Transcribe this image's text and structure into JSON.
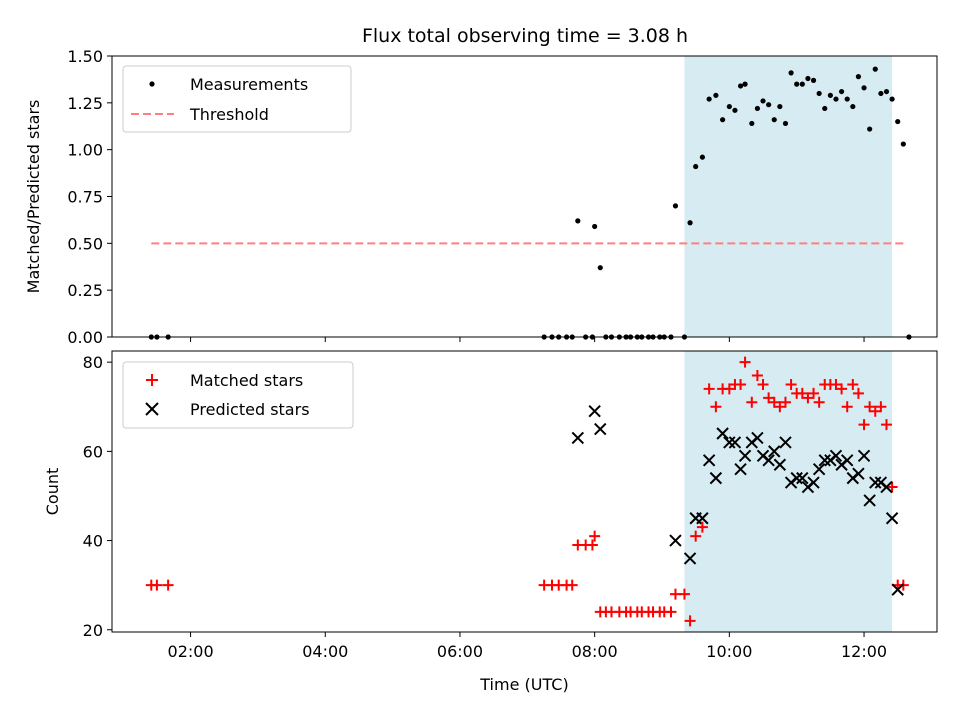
{
  "chart_data": [
    {
      "type": "scatter",
      "title": "Flux total observing time = 3.08 h",
      "ylabel": "Matched/Predicted stars",
      "xlim": [
        "00:50",
        "13:05"
      ],
      "ylim": [
        0,
        1.5
      ],
      "yticks": [
        "0.00",
        "0.25",
        "0.50",
        "0.75",
        "1.00",
        "1.25",
        "1.50"
      ],
      "legend_position": "top-left",
      "highlight_span": [
        "09:20",
        "12:25"
      ],
      "highlight_color": "#add8e6",
      "series": [
        {
          "name": "Measurements",
          "color": "#000000",
          "marker": "dot",
          "points": [
            [
              "01:25",
              0
            ],
            [
              "01:30",
              0
            ],
            [
              "01:40",
              0
            ],
            [
              "07:15",
              0
            ],
            [
              "07:22",
              0
            ],
            [
              "07:28",
              0
            ],
            [
              "07:35",
              0
            ],
            [
              "07:40",
              0
            ],
            [
              "07:45",
              0.62
            ],
            [
              "07:52",
              0
            ],
            [
              "07:58",
              0
            ],
            [
              "08:00",
              0.59
            ],
            [
              "08:05",
              0.37
            ],
            [
              "08:10",
              0
            ],
            [
              "08:15",
              0
            ],
            [
              "08:22",
              0
            ],
            [
              "08:28",
              0
            ],
            [
              "08:32",
              0
            ],
            [
              "08:38",
              0
            ],
            [
              "08:42",
              0
            ],
            [
              "08:48",
              0
            ],
            [
              "08:52",
              0
            ],
            [
              "08:58",
              0
            ],
            [
              "09:02",
              0
            ],
            [
              "09:08",
              0
            ],
            [
              "09:12",
              0.7
            ],
            [
              "09:20",
              0
            ],
            [
              "09:25",
              0.61
            ],
            [
              "09:30",
              0.91
            ],
            [
              "09:36",
              0.96
            ],
            [
              "09:42",
              1.27
            ],
            [
              "09:48",
              1.29
            ],
            [
              "09:54",
              1.16
            ],
            [
              "10:00",
              1.23
            ],
            [
              "10:05",
              1.21
            ],
            [
              "10:10",
              1.34
            ],
            [
              "10:14",
              1.35
            ],
            [
              "10:20",
              1.14
            ],
            [
              "10:25",
              1.22
            ],
            [
              "10:30",
              1.26
            ],
            [
              "10:35",
              1.24
            ],
            [
              "10:40",
              1.16
            ],
            [
              "10:45",
              1.23
            ],
            [
              "10:50",
              1.14
            ],
            [
              "10:55",
              1.41
            ],
            [
              "11:00",
              1.35
            ],
            [
              "11:05",
              1.35
            ],
            [
              "11:10",
              1.38
            ],
            [
              "11:15",
              1.37
            ],
            [
              "11:20",
              1.3
            ],
            [
              "11:25",
              1.22
            ],
            [
              "11:30",
              1.29
            ],
            [
              "11:35",
              1.27
            ],
            [
              "11:40",
              1.31
            ],
            [
              "11:45",
              1.27
            ],
            [
              "11:50",
              1.23
            ],
            [
              "11:55",
              1.39
            ],
            [
              "12:00",
              1.33
            ],
            [
              "12:05",
              1.11
            ],
            [
              "12:10",
              1.43
            ],
            [
              "12:15",
              1.3
            ],
            [
              "12:20",
              1.31
            ],
            [
              "12:25",
              1.27
            ],
            [
              "12:30",
              1.15
            ],
            [
              "12:35",
              1.03
            ],
            [
              "12:40",
              0
            ]
          ]
        },
        {
          "name": "Threshold",
          "color": "#ff7f7f",
          "line": "dashed",
          "points": [
            [
              "01:25",
              0.5
            ],
            [
              "12:35",
              0.5
            ]
          ]
        }
      ]
    },
    {
      "type": "scatter",
      "ylabel": "Count",
      "xlabel": "Time (UTC)",
      "xlim": [
        "00:50",
        "13:05"
      ],
      "ylim": [
        19.5,
        82.5
      ],
      "xticks": [
        "02:00",
        "04:00",
        "06:00",
        "08:00",
        "10:00",
        "12:00"
      ],
      "yticks": [
        "20",
        "40",
        "60",
        "80"
      ],
      "legend_position": "top-left",
      "highlight_span": [
        "09:20",
        "12:25"
      ],
      "highlight_color": "#add8e6",
      "series": [
        {
          "name": "Matched stars",
          "color": "#ff0000",
          "marker": "plus",
          "points": [
            [
              "01:25",
              30
            ],
            [
              "01:30",
              30
            ],
            [
              "01:40",
              30
            ],
            [
              "07:15",
              30
            ],
            [
              "07:22",
              30
            ],
            [
              "07:28",
              30
            ],
            [
              "07:35",
              30
            ],
            [
              "07:40",
              30
            ],
            [
              "07:45",
              39
            ],
            [
              "07:52",
              39
            ],
            [
              "07:58",
              39
            ],
            [
              "08:00",
              41
            ],
            [
              "08:05",
              24
            ],
            [
              "08:10",
              24
            ],
            [
              "08:15",
              24
            ],
            [
              "08:22",
              24
            ],
            [
              "08:28",
              24
            ],
            [
              "08:32",
              24
            ],
            [
              "08:38",
              24
            ],
            [
              "08:42",
              24
            ],
            [
              "08:48",
              24
            ],
            [
              "08:52",
              24
            ],
            [
              "08:58",
              24
            ],
            [
              "09:02",
              24
            ],
            [
              "09:08",
              24
            ],
            [
              "09:12",
              28
            ],
            [
              "09:20",
              28
            ],
            [
              "09:25",
              22
            ],
            [
              "09:30",
              41
            ],
            [
              "09:36",
              43
            ],
            [
              "09:42",
              74
            ],
            [
              "09:48",
              70
            ],
            [
              "09:54",
              74
            ],
            [
              "10:00",
              74
            ],
            [
              "10:05",
              75
            ],
            [
              "10:10",
              75
            ],
            [
              "10:14",
              80
            ],
            [
              "10:20",
              71
            ],
            [
              "10:25",
              77
            ],
            [
              "10:30",
              75
            ],
            [
              "10:35",
              72
            ],
            [
              "10:40",
              71
            ],
            [
              "10:45",
              70
            ],
            [
              "10:50",
              71
            ],
            [
              "10:55",
              75
            ],
            [
              "11:00",
              73
            ],
            [
              "11:05",
              73
            ],
            [
              "11:10",
              72
            ],
            [
              "11:15",
              73
            ],
            [
              "11:20",
              71
            ],
            [
              "11:25",
              75
            ],
            [
              "11:30",
              75
            ],
            [
              "11:35",
              75
            ],
            [
              "11:40",
              74
            ],
            [
              "11:45",
              70
            ],
            [
              "11:50",
              75
            ],
            [
              "11:55",
              73
            ],
            [
              "12:00",
              66
            ],
            [
              "12:05",
              70
            ],
            [
              "12:10",
              69
            ],
            [
              "12:15",
              70
            ],
            [
              "12:20",
              66
            ],
            [
              "12:25",
              52
            ],
            [
              "12:30",
              30
            ],
            [
              "12:35",
              30
            ]
          ]
        },
        {
          "name": "Predicted stars",
          "color": "#000000",
          "marker": "cross",
          "points": [
            [
              "07:45",
              63
            ],
            [
              "08:00",
              69
            ],
            [
              "08:05",
              65
            ],
            [
              "09:12",
              40
            ],
            [
              "09:25",
              36
            ],
            [
              "09:30",
              45
            ],
            [
              "09:36",
              45
            ],
            [
              "09:42",
              58
            ],
            [
              "09:48",
              54
            ],
            [
              "09:54",
              64
            ],
            [
              "10:00",
              62
            ],
            [
              "10:05",
              62
            ],
            [
              "10:10",
              56
            ],
            [
              "10:14",
              59
            ],
            [
              "10:20",
              62
            ],
            [
              "10:25",
              63
            ],
            [
              "10:30",
              59
            ],
            [
              "10:35",
              58
            ],
            [
              "10:40",
              60
            ],
            [
              "10:45",
              57
            ],
            [
              "10:50",
              62
            ],
            [
              "10:55",
              53
            ],
            [
              "11:00",
              54
            ],
            [
              "11:05",
              54
            ],
            [
              "11:10",
              52
            ],
            [
              "11:15",
              53
            ],
            [
              "11:20",
              56
            ],
            [
              "11:25",
              58
            ],
            [
              "11:30",
              58
            ],
            [
              "11:35",
              59
            ],
            [
              "11:40",
              57
            ],
            [
              "11:45",
              58
            ],
            [
              "11:50",
              54
            ],
            [
              "11:55",
              55
            ],
            [
              "12:00",
              59
            ],
            [
              "12:05",
              49
            ],
            [
              "12:10",
              53
            ],
            [
              "12:15",
              53
            ],
            [
              "12:20",
              52
            ],
            [
              "12:25",
              45
            ],
            [
              "12:30",
              29
            ]
          ]
        }
      ]
    }
  ]
}
